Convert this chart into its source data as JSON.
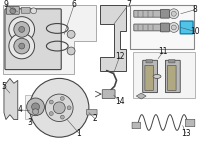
{
  "bg_color": "#ffffff",
  "highlight_color": "#4fc3e8",
  "line_color": "#444444",
  "gray_light": "#d8d8d8",
  "gray_mid": "#b8b8b8",
  "gray_dark": "#909090",
  "part_bg": "#f0f0f0",
  "box_edge": "#aaaaaa",
  "kit_box_edge": "#888888",
  "label_color": "#111111",
  "leader_color": "#555555"
}
